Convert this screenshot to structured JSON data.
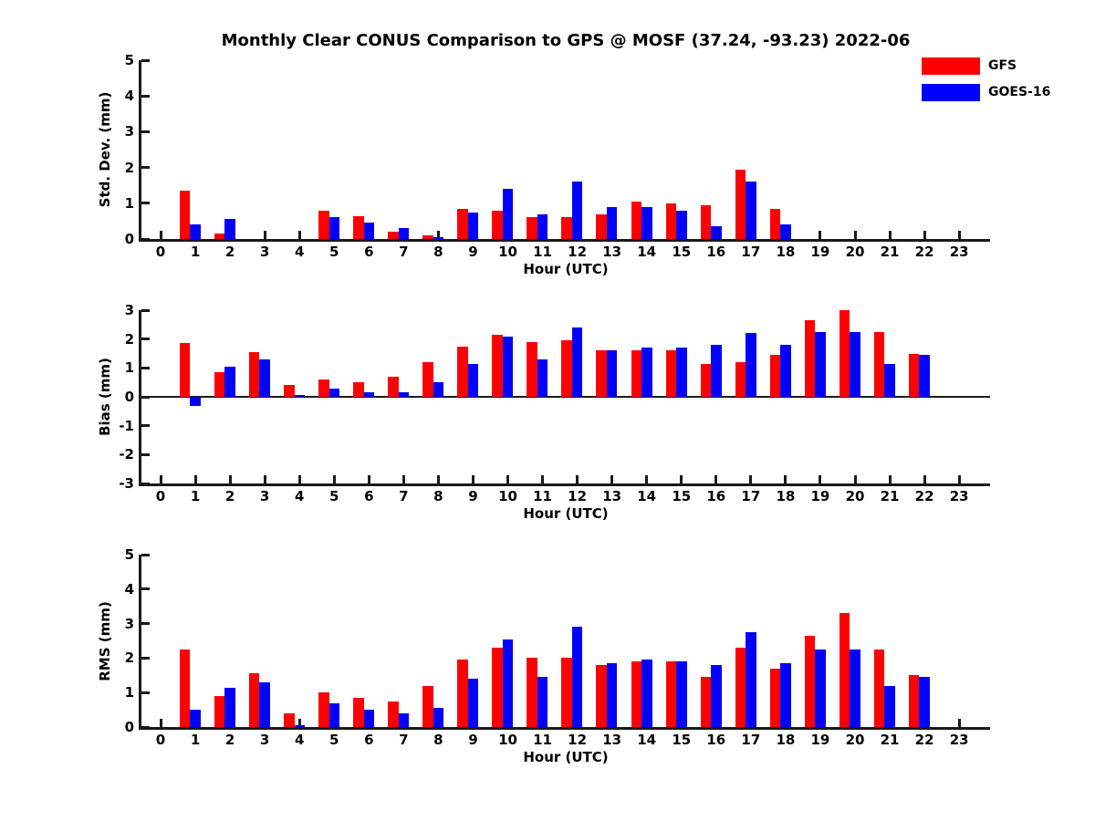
{
  "title": "Monthly Clear CONUS Comparison to GPS @ MOSF (37.24, -93.23) 2022-06",
  "legend": [
    {
      "label": "GFS",
      "color": "#ff0000"
    },
    {
      "label": "GOES-16",
      "color": "#0000ff"
    }
  ],
  "colors": {
    "gfs": "#ff0000",
    "goes16": "#0000ff",
    "axis": "#1a1a1a"
  },
  "chart_data": [
    {
      "id": "stddev",
      "type": "bar",
      "title": "Monthly Clear CONUS Comparison to GPS @ MOSF (37.24, -93.23) 2022-06",
      "xlabel": "Hour (UTC)",
      "ylabel": "Std. Dev. (mm)",
      "ylim": [
        0,
        5
      ],
      "yticks": [
        0,
        1,
        2,
        3,
        4,
        5
      ],
      "grid": false,
      "legend_position": "upper right",
      "categories": [
        "0",
        "1",
        "2",
        "3",
        "4",
        "5",
        "6",
        "7",
        "8",
        "9",
        "10",
        "11",
        "12",
        "13",
        "14",
        "15",
        "16",
        "17",
        "18",
        "19",
        "20",
        "21",
        "22",
        "23"
      ],
      "series": [
        {
          "name": "GFS",
          "color": "#ff0000",
          "values": [
            0,
            1.35,
            0.15,
            0,
            0,
            0.8,
            0.65,
            0.2,
            0.1,
            0.85,
            0.8,
            0.6,
            0.6,
            0.7,
            1.05,
            1.0,
            0.95,
            1.95,
            0.85,
            0,
            0,
            0,
            0,
            0
          ]
        },
        {
          "name": "GOES-16",
          "color": "#0000ff",
          "values": [
            0,
            0.4,
            0.55,
            0,
            0,
            0.6,
            0.45,
            0.3,
            0.05,
            0.75,
            1.4,
            0.7,
            1.6,
            0.9,
            0.9,
            0.8,
            0.35,
            1.6,
            0.4,
            0,
            0,
            0,
            0,
            0
          ]
        }
      ]
    },
    {
      "id": "bias",
      "type": "bar",
      "xlabel": "Hour (UTC)",
      "ylabel": "Bias (mm)",
      "ylim": [
        -3,
        3
      ],
      "yticks": [
        -3,
        -2,
        -1,
        0,
        1,
        2,
        3
      ],
      "grid": false,
      "categories": [
        "0",
        "1",
        "2",
        "3",
        "4",
        "5",
        "6",
        "7",
        "8",
        "9",
        "10",
        "11",
        "12",
        "13",
        "14",
        "15",
        "16",
        "17",
        "18",
        "19",
        "20",
        "21",
        "22",
        "23"
      ],
      "series": [
        {
          "name": "GFS",
          "color": "#ff0000",
          "values": [
            0,
            1.85,
            0.85,
            1.55,
            0.4,
            0.6,
            0.5,
            0.7,
            1.2,
            1.75,
            2.15,
            1.9,
            1.95,
            1.6,
            1.6,
            1.6,
            1.15,
            1.2,
            1.45,
            2.65,
            3.0,
            2.25,
            1.5,
            0
          ]
        },
        {
          "name": "GOES-16",
          "color": "#0000ff",
          "values": [
            0,
            -0.3,
            1.05,
            1.3,
            0.05,
            0.3,
            0.15,
            0.15,
            0.5,
            1.15,
            2.1,
            1.3,
            2.4,
            1.6,
            1.7,
            1.7,
            1.8,
            2.2,
            1.8,
            2.25,
            2.25,
            1.15,
            1.45,
            0
          ]
        }
      ]
    },
    {
      "id": "rms",
      "type": "bar",
      "xlabel": "Hour (UTC)",
      "ylabel": "RMS (mm)",
      "ylim": [
        0,
        5
      ],
      "yticks": [
        0,
        1,
        2,
        3,
        4,
        5
      ],
      "grid": false,
      "categories": [
        "0",
        "1",
        "2",
        "3",
        "4",
        "5",
        "6",
        "7",
        "8",
        "9",
        "10",
        "11",
        "12",
        "13",
        "14",
        "15",
        "16",
        "17",
        "18",
        "19",
        "20",
        "21",
        "22",
        "23"
      ],
      "series": [
        {
          "name": "GFS",
          "color": "#ff0000",
          "values": [
            0,
            2.25,
            0.9,
            1.55,
            0.4,
            1.0,
            0.85,
            0.75,
            1.2,
            1.95,
            2.3,
            2.0,
            2.0,
            1.8,
            1.9,
            1.9,
            1.45,
            2.3,
            1.7,
            2.65,
            3.3,
            2.25,
            1.5,
            0
          ]
        },
        {
          "name": "GOES-16",
          "color": "#0000ff",
          "values": [
            0,
            0.5,
            1.15,
            1.3,
            0.05,
            0.7,
            0.5,
            0.4,
            0.55,
            1.4,
            2.55,
            1.45,
            2.9,
            1.85,
            1.95,
            1.9,
            1.8,
            2.75,
            1.85,
            2.25,
            2.25,
            1.2,
            1.45,
            0
          ]
        }
      ]
    }
  ]
}
